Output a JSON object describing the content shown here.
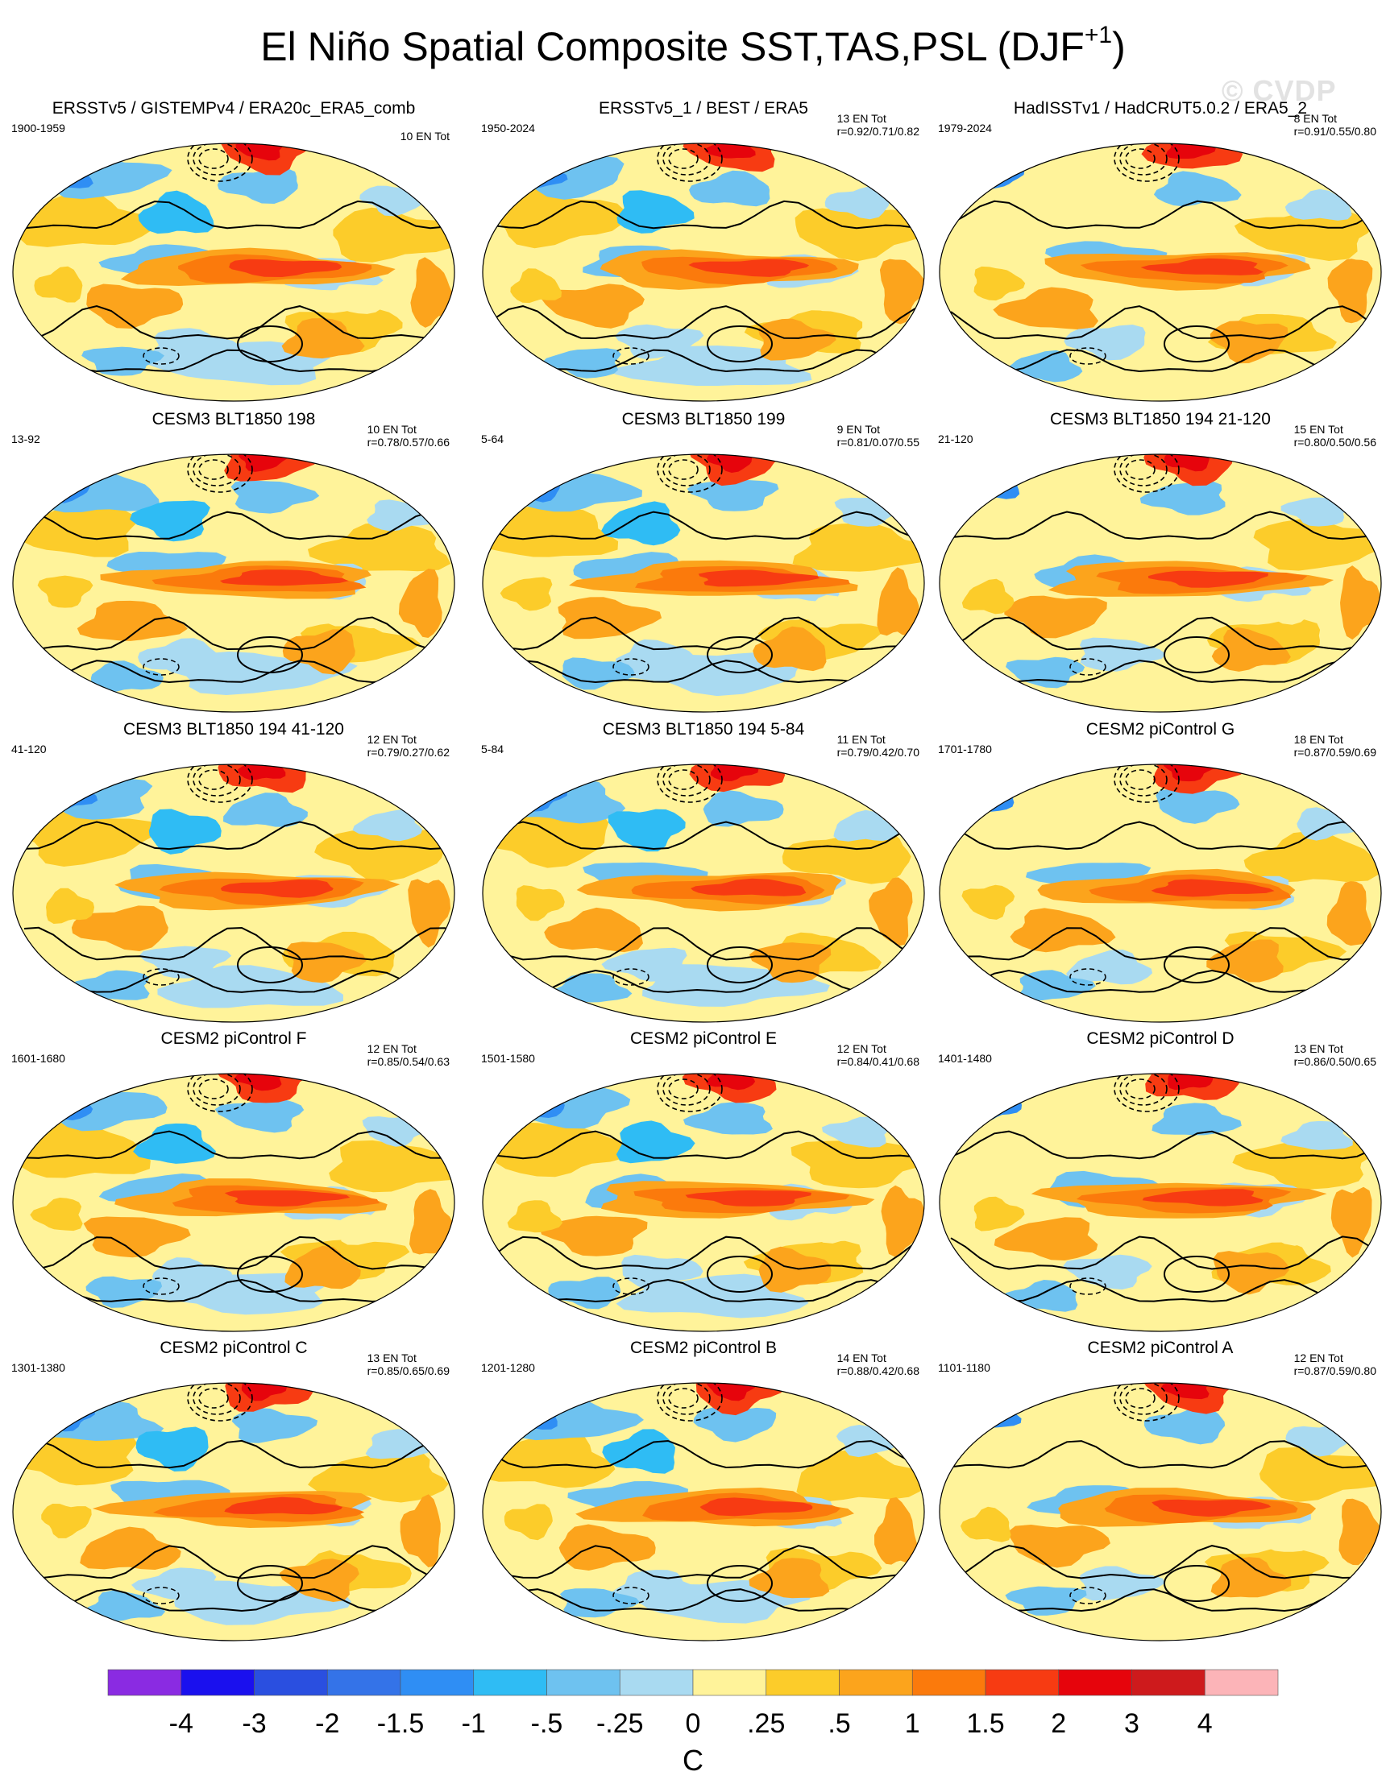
{
  "title": {
    "main": "El Niño Spatial Composite SST,TAS,PSL (DJF",
    "superscript": "+1",
    "close": ")"
  },
  "watermark": "© CVDP",
  "panels": [
    {
      "title": "ERSSTv5 / GISTEMPv4 / ERA20c_ERA5_comb",
      "period": "1900-1959",
      "count": "10 EN Tot",
      "r": ""
    },
    {
      "title": "ERSSTv5_1 / BEST / ERA5",
      "period": "1950-2024",
      "count": "13 EN Tot",
      "r": "r=0.92/0.71/0.82"
    },
    {
      "title": "HadISSTv1 / HadCRUT5.0.2 / ERA5_2",
      "period": "1979-2024",
      "count": "8 EN Tot",
      "r": "r=0.91/0.55/0.80"
    },
    {
      "title": "CESM3 BLT1850 198",
      "period": "13-92",
      "count": "10 EN Tot",
      "r": "r=0.78/0.57/0.66"
    },
    {
      "title": "CESM3 BLT1850 199",
      "period": "5-64",
      "count": "9 EN Tot",
      "r": "r=0.81/0.07/0.55"
    },
    {
      "title": "CESM3 BLT1850 194 21-120",
      "period": "21-120",
      "count": "15 EN Tot",
      "r": "r=0.80/0.50/0.56"
    },
    {
      "title": "CESM3 BLT1850 194 41-120",
      "period": "41-120",
      "count": "12 EN Tot",
      "r": "r=0.79/0.27/0.62"
    },
    {
      "title": "CESM3 BLT1850 194 5-84",
      "period": "5-84",
      "count": "11 EN Tot",
      "r": "r=0.79/0.42/0.70"
    },
    {
      "title": "CESM2 piControl G",
      "period": "1701-1780",
      "count": "18 EN Tot",
      "r": "r=0.87/0.59/0.69"
    },
    {
      "title": "CESM2 piControl F",
      "period": "1601-1680",
      "count": "12 EN Tot",
      "r": "r=0.85/0.54/0.63"
    },
    {
      "title": "CESM2 piControl E",
      "period": "1501-1580",
      "count": "12 EN Tot",
      "r": "r=0.84/0.41/0.68"
    },
    {
      "title": "CESM2 piControl D",
      "period": "1401-1480",
      "count": "13 EN Tot",
      "r": "r=0.86/0.50/0.65"
    },
    {
      "title": "CESM2 piControl C",
      "period": "1301-1380",
      "count": "13 EN Tot",
      "r": "r=0.85/0.65/0.69"
    },
    {
      "title": "CESM2 piControl B",
      "period": "1201-1280",
      "count": "14 EN Tot",
      "r": "r=0.88/0.42/0.68"
    },
    {
      "title": "CESM2 piControl A",
      "period": "1101-1180",
      "count": "12 EN Tot",
      "r": "r=0.87/0.59/0.80"
    }
  ],
  "colorbar": {
    "colors": [
      "#8a2be2",
      "#1a10ee",
      "#2a4fe0",
      "#3473e8",
      "#2f8ef4",
      "#2fbcf4",
      "#6ec2f0",
      "#a9daf1",
      "#fff39a",
      "#fccc2a",
      "#fca41c",
      "#fb7a0c",
      "#f73b12",
      "#e6040c",
      "#ce1a1c",
      "#fcb4b8"
    ],
    "labels": [
      "-4",
      "-3",
      "-2",
      "-1.5",
      "-1",
      "-.5",
      "-.25",
      "0",
      ".25",
      ".5",
      "1",
      "1.5",
      "2",
      "3",
      "4"
    ],
    "units": "C"
  }
}
